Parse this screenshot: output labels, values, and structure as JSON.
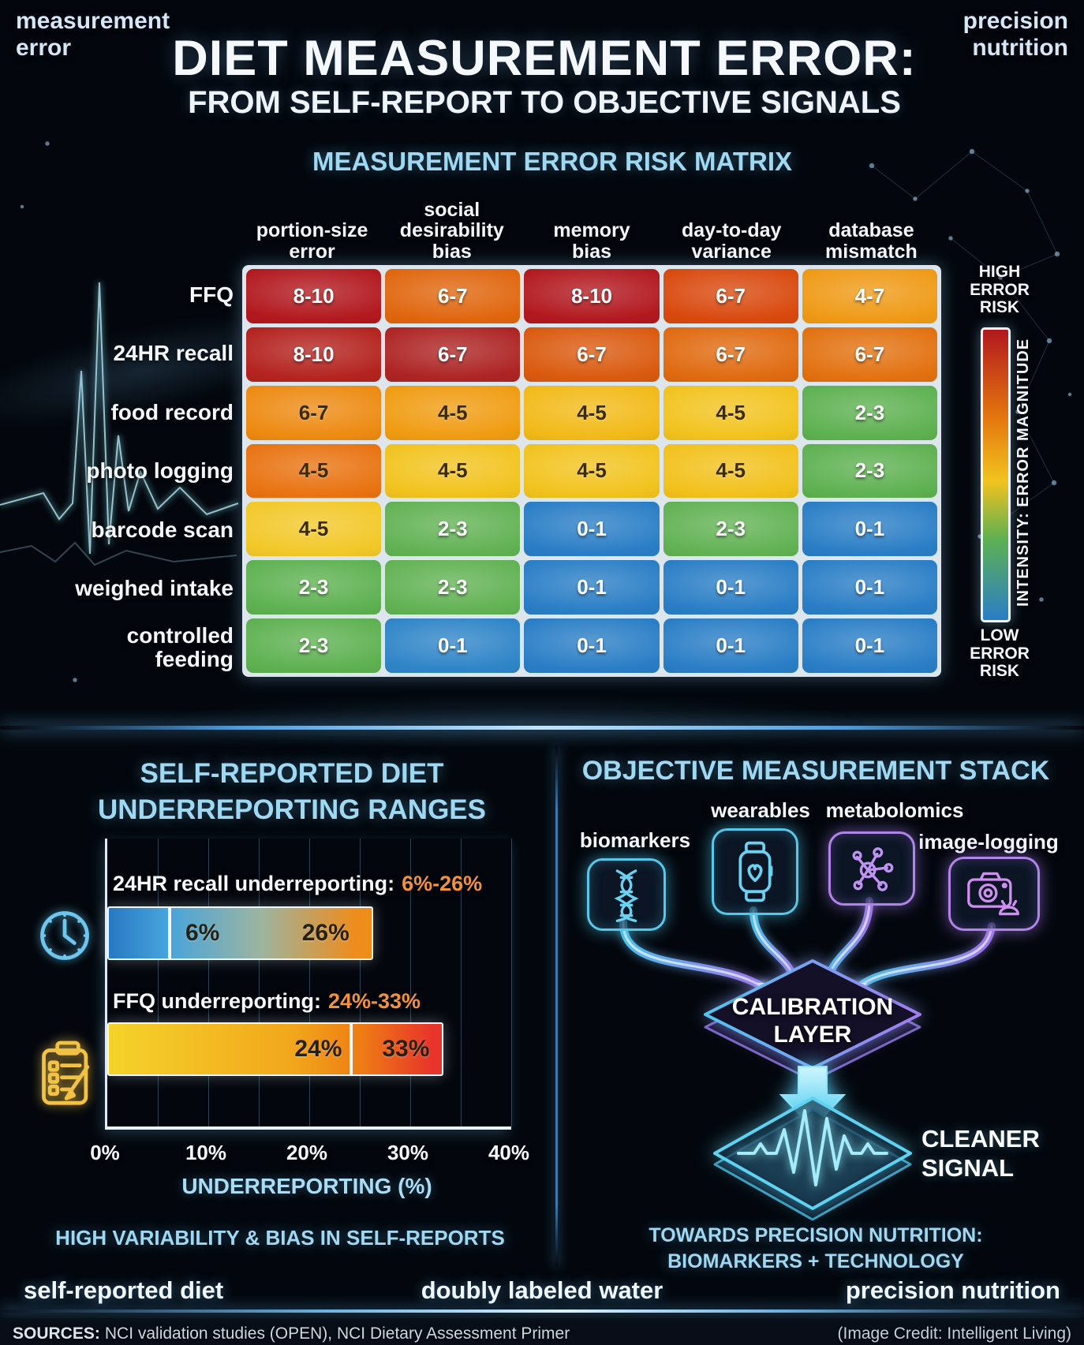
{
  "header": {
    "corner_left": "measurement\nerror",
    "corner_right": "precision\nnutrition",
    "title": "DIET MEASUREMENT ERROR:",
    "subtitle": "FROM SELF-REPORT TO OBJECTIVE SIGNALS"
  },
  "matrix": {
    "title": "MEASUREMENT ERROR RISK MATRIX",
    "columns": [
      "portion-size\nerror",
      "social\ndesirability\nbias",
      "memory\nbias",
      "day-to-day\nvariance",
      "database\nmismatch"
    ],
    "rows": [
      {
        "label": "FFQ",
        "cells": [
          {
            "v": "8-10",
            "c": "#b2191f",
            "dark": false
          },
          {
            "v": "6-7",
            "c": "#e0660e",
            "dark": false
          },
          {
            "v": "8-10",
            "c": "#b2191f",
            "dark": false
          },
          {
            "v": "6-7",
            "c": "#d9490e",
            "dark": false
          },
          {
            "v": "4-7",
            "c": "#ef9a16",
            "dark": false
          }
        ]
      },
      {
        "label": "24HR recall",
        "cells": [
          {
            "v": "8-10",
            "c": "#b4231f",
            "dark": false
          },
          {
            "v": "6-7",
            "c": "#ae2424",
            "dark": false
          },
          {
            "v": "6-7",
            "c": "#da5a0f",
            "dark": false
          },
          {
            "v": "6-7",
            "c": "#e06a10",
            "dark": false
          },
          {
            "v": "6-7",
            "c": "#e27110",
            "dark": false
          }
        ]
      },
      {
        "label": "food record",
        "cells": [
          {
            "v": "6-7",
            "c": "#ed8a12",
            "dark": true
          },
          {
            "v": "4-5",
            "c": "#f09c12",
            "dark": true
          },
          {
            "v": "4-5",
            "c": "#f2ba18",
            "dark": true
          },
          {
            "v": "4-5",
            "c": "#f2c31e",
            "dark": true
          },
          {
            "v": "2-3",
            "c": "#5eb151",
            "dark": false
          }
        ]
      },
      {
        "label": "photo logging",
        "cells": [
          {
            "v": "4-5",
            "c": "#e97311",
            "dark": true
          },
          {
            "v": "4-5",
            "c": "#f2c31e",
            "dark": true
          },
          {
            "v": "4-5",
            "c": "#f2c31e",
            "dark": true
          },
          {
            "v": "4-5",
            "c": "#f2c11c",
            "dark": true
          },
          {
            "v": "2-3",
            "c": "#5eb151",
            "dark": false
          }
        ]
      },
      {
        "label": "barcode scan",
        "cells": [
          {
            "v": "4-5",
            "c": "#f2c829",
            "dark": true
          },
          {
            "v": "2-3",
            "c": "#62b254",
            "dark": false
          },
          {
            "v": "0-1",
            "c": "#2a7ec6",
            "dark": false
          },
          {
            "v": "2-3",
            "c": "#62b254",
            "dark": false
          },
          {
            "v": "0-1",
            "c": "#2a7ec6",
            "dark": false
          }
        ]
      },
      {
        "label": "weighed intake",
        "cells": [
          {
            "v": "2-3",
            "c": "#5eb151",
            "dark": false
          },
          {
            "v": "2-3",
            "c": "#62b254",
            "dark": false
          },
          {
            "v": "0-1",
            "c": "#2a7ec6",
            "dark": false
          },
          {
            "v": "0-1",
            "c": "#2a7ec6",
            "dark": false
          },
          {
            "v": "0-1",
            "c": "#2a7ec6",
            "dark": false
          }
        ]
      },
      {
        "label": "controlled\nfeeding",
        "cells": [
          {
            "v": "2-3",
            "c": "#5eb151",
            "dark": false
          },
          {
            "v": "0-1",
            "c": "#2f85c8",
            "dark": false
          },
          {
            "v": "0-1",
            "c": "#2a7ec6",
            "dark": false
          },
          {
            "v": "0-1",
            "c": "#2a7ec6",
            "dark": false
          },
          {
            "v": "0-1",
            "c": "#2a7ec6",
            "dark": false
          }
        ]
      }
    ],
    "legend": {
      "high": "HIGH\nERROR\nRISK",
      "low": "LOW\nERROR\nRISK",
      "axis_label": "INTENSITY: ERROR MAGNITUDE",
      "gradient": [
        "#b2191f",
        "#e4750f",
        "#f2c31e",
        "#5eb151",
        "#2a7ec6"
      ]
    }
  },
  "underreporting_chart": {
    "title": "SELF-REPORTED DIET\nUNDERREPORTING RANGES",
    "bars": [
      {
        "icon": "clock-icon",
        "label": "24HR recall underreporting:",
        "range": "6%-26%",
        "low": 6,
        "high": 26,
        "low_label": "6%",
        "high_label": "26%",
        "gradient": [
          "#2878c2 0%",
          "#46a4dc 22%",
          "#9db4a0 58%",
          "#ee8c1c 94%"
        ]
      },
      {
        "icon": "clipboard-icon",
        "label": "FFQ underreporting:",
        "range": "24%-33%",
        "low": 24,
        "high": 33,
        "low_label": "24%",
        "high_label": "33%",
        "gradient": [
          "#f4d32a 0%",
          "#f2a71c 55%",
          "#ee7c14 76%",
          "#e8342a 97%"
        ]
      }
    ],
    "x_ticks": [
      "0%",
      "10%",
      "20%",
      "30%",
      "40%"
    ],
    "x_max": 40,
    "axis_label": "UNDERREPORTING (%)",
    "caption": "HIGH VARIABILITY & BIAS IN SELF-REPORTS"
  },
  "stack": {
    "title": "OBJECTIVE MEASUREMENT STACK",
    "nodes": [
      {
        "label": "biomarkers",
        "icon": "dna-icon"
      },
      {
        "label": "wearables",
        "icon": "watch-icon"
      },
      {
        "label": "metabolomics",
        "icon": "molecule-icon"
      },
      {
        "label": "image-logging",
        "icon": "camera-icon"
      }
    ],
    "hub": "CALIBRATION\nLAYER",
    "output": "CLEANER\nSIGNAL",
    "caption": "TOWARDS PRECISION NUTRITION:\nBIOMARKERS + TECHNOLOGY"
  },
  "footer": {
    "items": [
      "self-reported diet",
      "doubly labeled water",
      "precision nutrition"
    ],
    "sources_label": "SOURCES:",
    "sources_text": "NCI validation studies (OPEN), NCI Dietary Assessment Primer",
    "credit": "(Image Credit: Intelligent Living)"
  },
  "chart_data": [
    {
      "type": "heatmap",
      "title": "MEASUREMENT ERROR RISK MATRIX",
      "rows": [
        "FFQ",
        "24HR recall",
        "food record",
        "photo logging",
        "barcode scan",
        "weighed intake",
        "controlled feeding"
      ],
      "columns": [
        "portion-size error",
        "social desirability bias",
        "memory bias",
        "day-to-day variance",
        "database mismatch"
      ],
      "values": [
        [
          "8-10",
          "6-7",
          "8-10",
          "6-7",
          "4-7"
        ],
        [
          "8-10",
          "6-7",
          "6-7",
          "6-7",
          "6-7"
        ],
        [
          "6-7",
          "4-5",
          "4-5",
          "4-5",
          "2-3"
        ],
        [
          "4-5",
          "4-5",
          "4-5",
          "4-5",
          "2-3"
        ],
        [
          "4-5",
          "2-3",
          "0-1",
          "2-3",
          "0-1"
        ],
        [
          "2-3",
          "2-3",
          "0-1",
          "0-1",
          "0-1"
        ],
        [
          "2-3",
          "0-1",
          "0-1",
          "0-1",
          "0-1"
        ]
      ],
      "legend_label": "INTENSITY: ERROR MAGNITUDE",
      "legend_scale": "LOW ERROR RISK (blue) to HIGH ERROR RISK (red)"
    },
    {
      "type": "bar",
      "title": "SELF-REPORTED DIET UNDERREPORTING RANGES",
      "categories": [
        "24HR recall underreporting",
        "FFQ underreporting"
      ],
      "series": [
        {
          "name": "range low %",
          "values": [
            6,
            24
          ]
        },
        {
          "name": "range high %",
          "values": [
            26,
            33
          ]
        }
      ],
      "xlabel": "UNDERREPORTING (%)",
      "xlim": [
        0,
        40
      ],
      "grid": true,
      "caption": "HIGH VARIABILITY & BIAS IN SELF-REPORTS"
    }
  ]
}
